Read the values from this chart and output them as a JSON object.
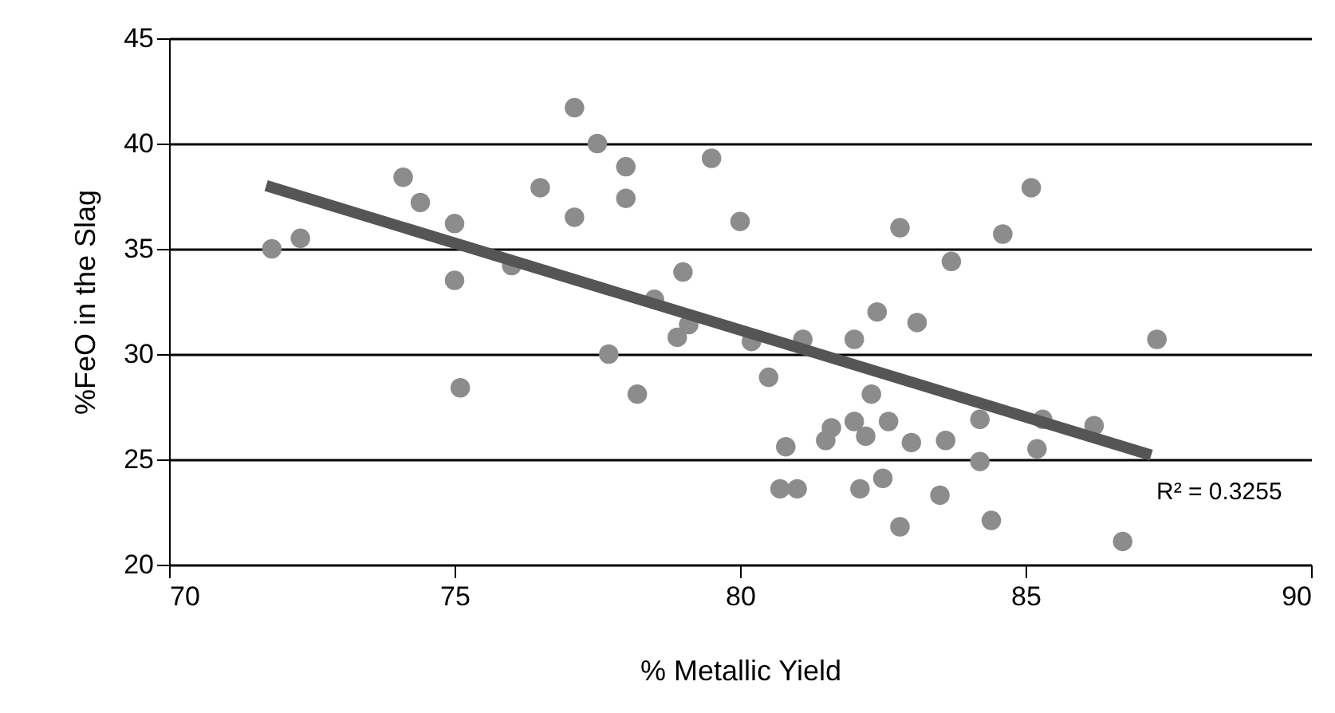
{
  "chart_data": {
    "type": "scatter",
    "xlabel": "% Metallic Yield",
    "ylabel": "%FeO in the Slag",
    "xlim": [
      70,
      90
    ],
    "xticks": [
      70,
      75,
      80,
      85,
      90
    ],
    "ylim": [
      20,
      45
    ],
    "yticks": [
      20,
      25,
      30,
      35,
      40,
      45
    ],
    "grid": "y",
    "series": [
      {
        "marker": "circle",
        "color": "#8c8c8c",
        "x": [
          71.8,
          72.3,
          74.1,
          74.4,
          75.0,
          75.0,
          75.1,
          76.0,
          76.5,
          77.1,
          77.1,
          77.5,
          78.0,
          78.0,
          77.7,
          78.2,
          78.5,
          79.0,
          78.9,
          79.1,
          79.5,
          80.0,
          80.2,
          81.1,
          80.5,
          80.8,
          80.7,
          81.0,
          81.6,
          81.5,
          82.0,
          82.2,
          82.1,
          82.0,
          82.4,
          82.3,
          82.8,
          82.6,
          82.5,
          82.8,
          83.1,
          83.0,
          83.6,
          83.5,
          83.7,
          84.2,
          84.2,
          84.4,
          84.6,
          85.1,
          85.2,
          85.3,
          86.2,
          86.7,
          87.3
        ],
        "values": [
          35.0,
          35.5,
          38.4,
          37.2,
          36.2,
          33.5,
          28.4,
          34.2,
          37.9,
          36.5,
          41.7,
          40.0,
          38.9,
          37.4,
          30.0,
          28.1,
          32.6,
          33.9,
          30.8,
          31.4,
          39.3,
          36.3,
          30.6,
          30.7,
          28.9,
          25.6,
          23.6,
          23.6,
          26.5,
          25.9,
          26.8,
          26.1,
          23.6,
          30.7,
          32.0,
          28.1,
          36.0,
          26.8,
          24.1,
          21.8,
          31.5,
          25.8,
          25.9,
          23.3,
          34.4,
          26.9,
          24.9,
          22.1,
          35.7,
          37.9,
          25.5,
          26.9,
          26.6,
          21.1,
          30.7
        ]
      },
      {
        "type": "line",
        "color": "#555555",
        "x": [
          71.7,
          87.2
        ],
        "values": [
          38.0,
          25.2
        ]
      }
    ],
    "annotations": [
      "R² = 0.3255"
    ]
  }
}
